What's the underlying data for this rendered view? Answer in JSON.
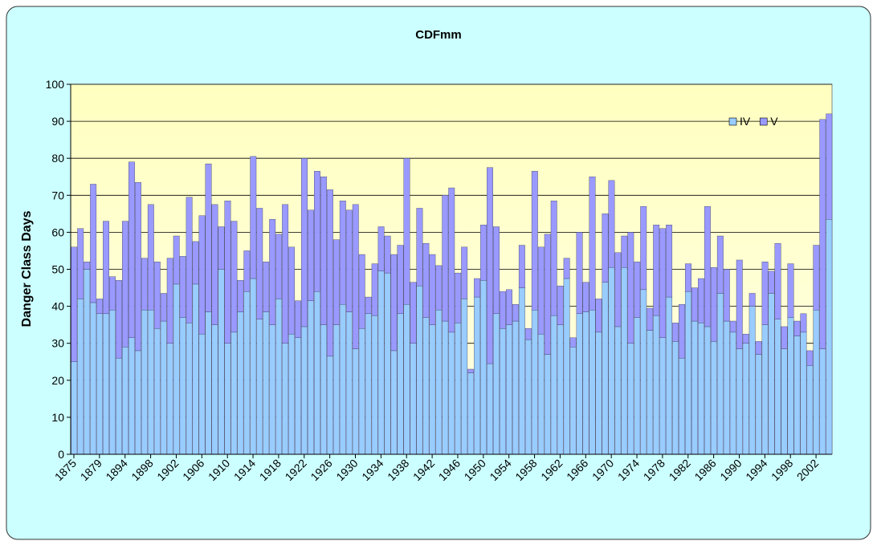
{
  "chart_data": {
    "type": "stacked_bar",
    "title": "CDFmm",
    "y_label": "Danger Class Days",
    "categories": [
      1875,
      null,
      null,
      null,
      1879,
      null,
      null,
      null,
      1894,
      null,
      null,
      null,
      1898,
      null,
      null,
      null,
      1902,
      null,
      null,
      null,
      1906,
      null,
      null,
      null,
      1910,
      null,
      null,
      null,
      1914,
      null,
      null,
      null,
      1918,
      null,
      null,
      null,
      1922,
      null,
      null,
      null,
      1926,
      null,
      null,
      null,
      1930,
      null,
      null,
      null,
      1934,
      null,
      null,
      null,
      1938,
      null,
      null,
      null,
      1942,
      null,
      null,
      null,
      1946,
      null,
      null,
      null,
      1950,
      null,
      null,
      null,
      1954,
      null,
      null,
      null,
      1958,
      null,
      null,
      null,
      1962,
      null,
      null,
      null,
      1966,
      null,
      null,
      null,
      1970,
      null,
      null,
      null,
      1974,
      null,
      null,
      null,
      1978,
      null,
      null,
      null,
      1982,
      null,
      null,
      null,
      1986,
      null,
      null,
      null,
      1990,
      null,
      null,
      null,
      1994,
      null,
      null,
      null,
      1998,
      null,
      null,
      null,
      2002,
      null,
      null
    ],
    "series": [
      {
        "name": "IV",
        "color": "#99ccff",
        "values": [
          25,
          42,
          50,
          41,
          38,
          38,
          39,
          26,
          29,
          31.5,
          28,
          39,
          39,
          34,
          36,
          30,
          46,
          37,
          35.5,
          46,
          32.5,
          38.5,
          35,
          50,
          30,
          33,
          38.5,
          44,
          47.5,
          36.5,
          38.5,
          35,
          42,
          30,
          32.5,
          31.5,
          34.5,
          41.5,
          44,
          35,
          26.5,
          35,
          40.5,
          38.5,
          28.5,
          34,
          38,
          37.5,
          49.5,
          49,
          28,
          38,
          40.5,
          30,
          45.5,
          37,
          35,
          39,
          36,
          33,
          35.5,
          42,
          22,
          42.5,
          47,
          24.5,
          38,
          34,
          35,
          36,
          45,
          31,
          39,
          32.5,
          27,
          37.5,
          35,
          47.5,
          29,
          38,
          38.5,
          39,
          33,
          46.5,
          50.5,
          34.5,
          50.5,
          30,
          37,
          44.5,
          33.5,
          37.5,
          31.5,
          42.5,
          30.5,
          26,
          44,
          36,
          35.5,
          34.5,
          30.5,
          43.5,
          36,
          33,
          28.5,
          30,
          40,
          27,
          35,
          43.5,
          36.5,
          28.5,
          37,
          32,
          33,
          24,
          39,
          28.5,
          63.5
        ]
      },
      {
        "name": "V",
        "color": "#9999ff",
        "values": [
          31,
          19,
          2,
          32,
          4,
          25,
          9,
          21,
          34,
          47.5,
          45.5,
          14,
          28.5,
          18,
          7.5,
          23,
          13,
          16.5,
          34,
          11.5,
          32,
          40,
          32.5,
          11.5,
          38.5,
          30,
          8.5,
          11,
          33,
          30,
          13.5,
          28.5,
          17.5,
          37.5,
          23.5,
          10,
          45.5,
          24.5,
          32.5,
          40,
          45,
          23,
          28,
          27.5,
          39,
          20,
          4.5,
          14,
          12,
          10,
          26,
          18.5,
          39.5,
          16.5,
          21,
          20,
          19,
          12,
          34,
          39,
          13.5,
          14,
          1,
          5,
          15,
          53,
          23.5,
          10,
          9.5,
          4.5,
          11.5,
          3,
          37.5,
          23.5,
          32.5,
          31,
          10.5,
          5.5,
          2.5,
          22,
          8,
          36,
          9,
          18.5,
          23.5,
          20,
          8.5,
          30,
          15,
          22.5,
          6,
          24.5,
          29.5,
          19.5,
          5,
          14.5,
          7.5,
          9,
          12,
          32.5,
          20,
          15.5,
          14,
          3,
          24,
          2.5,
          3.5,
          3.5,
          17,
          6,
          20.5,
          6,
          14.5,
          4,
          5,
          4,
          17.5,
          62,
          28.5
        ]
      }
    ],
    "ylim": [
      0,
      100
    ],
    "yticks": [
      0,
      10,
      20,
      30,
      40,
      50,
      60,
      70,
      80,
      90,
      100
    ],
    "grid": true,
    "legend": "upper right"
  }
}
